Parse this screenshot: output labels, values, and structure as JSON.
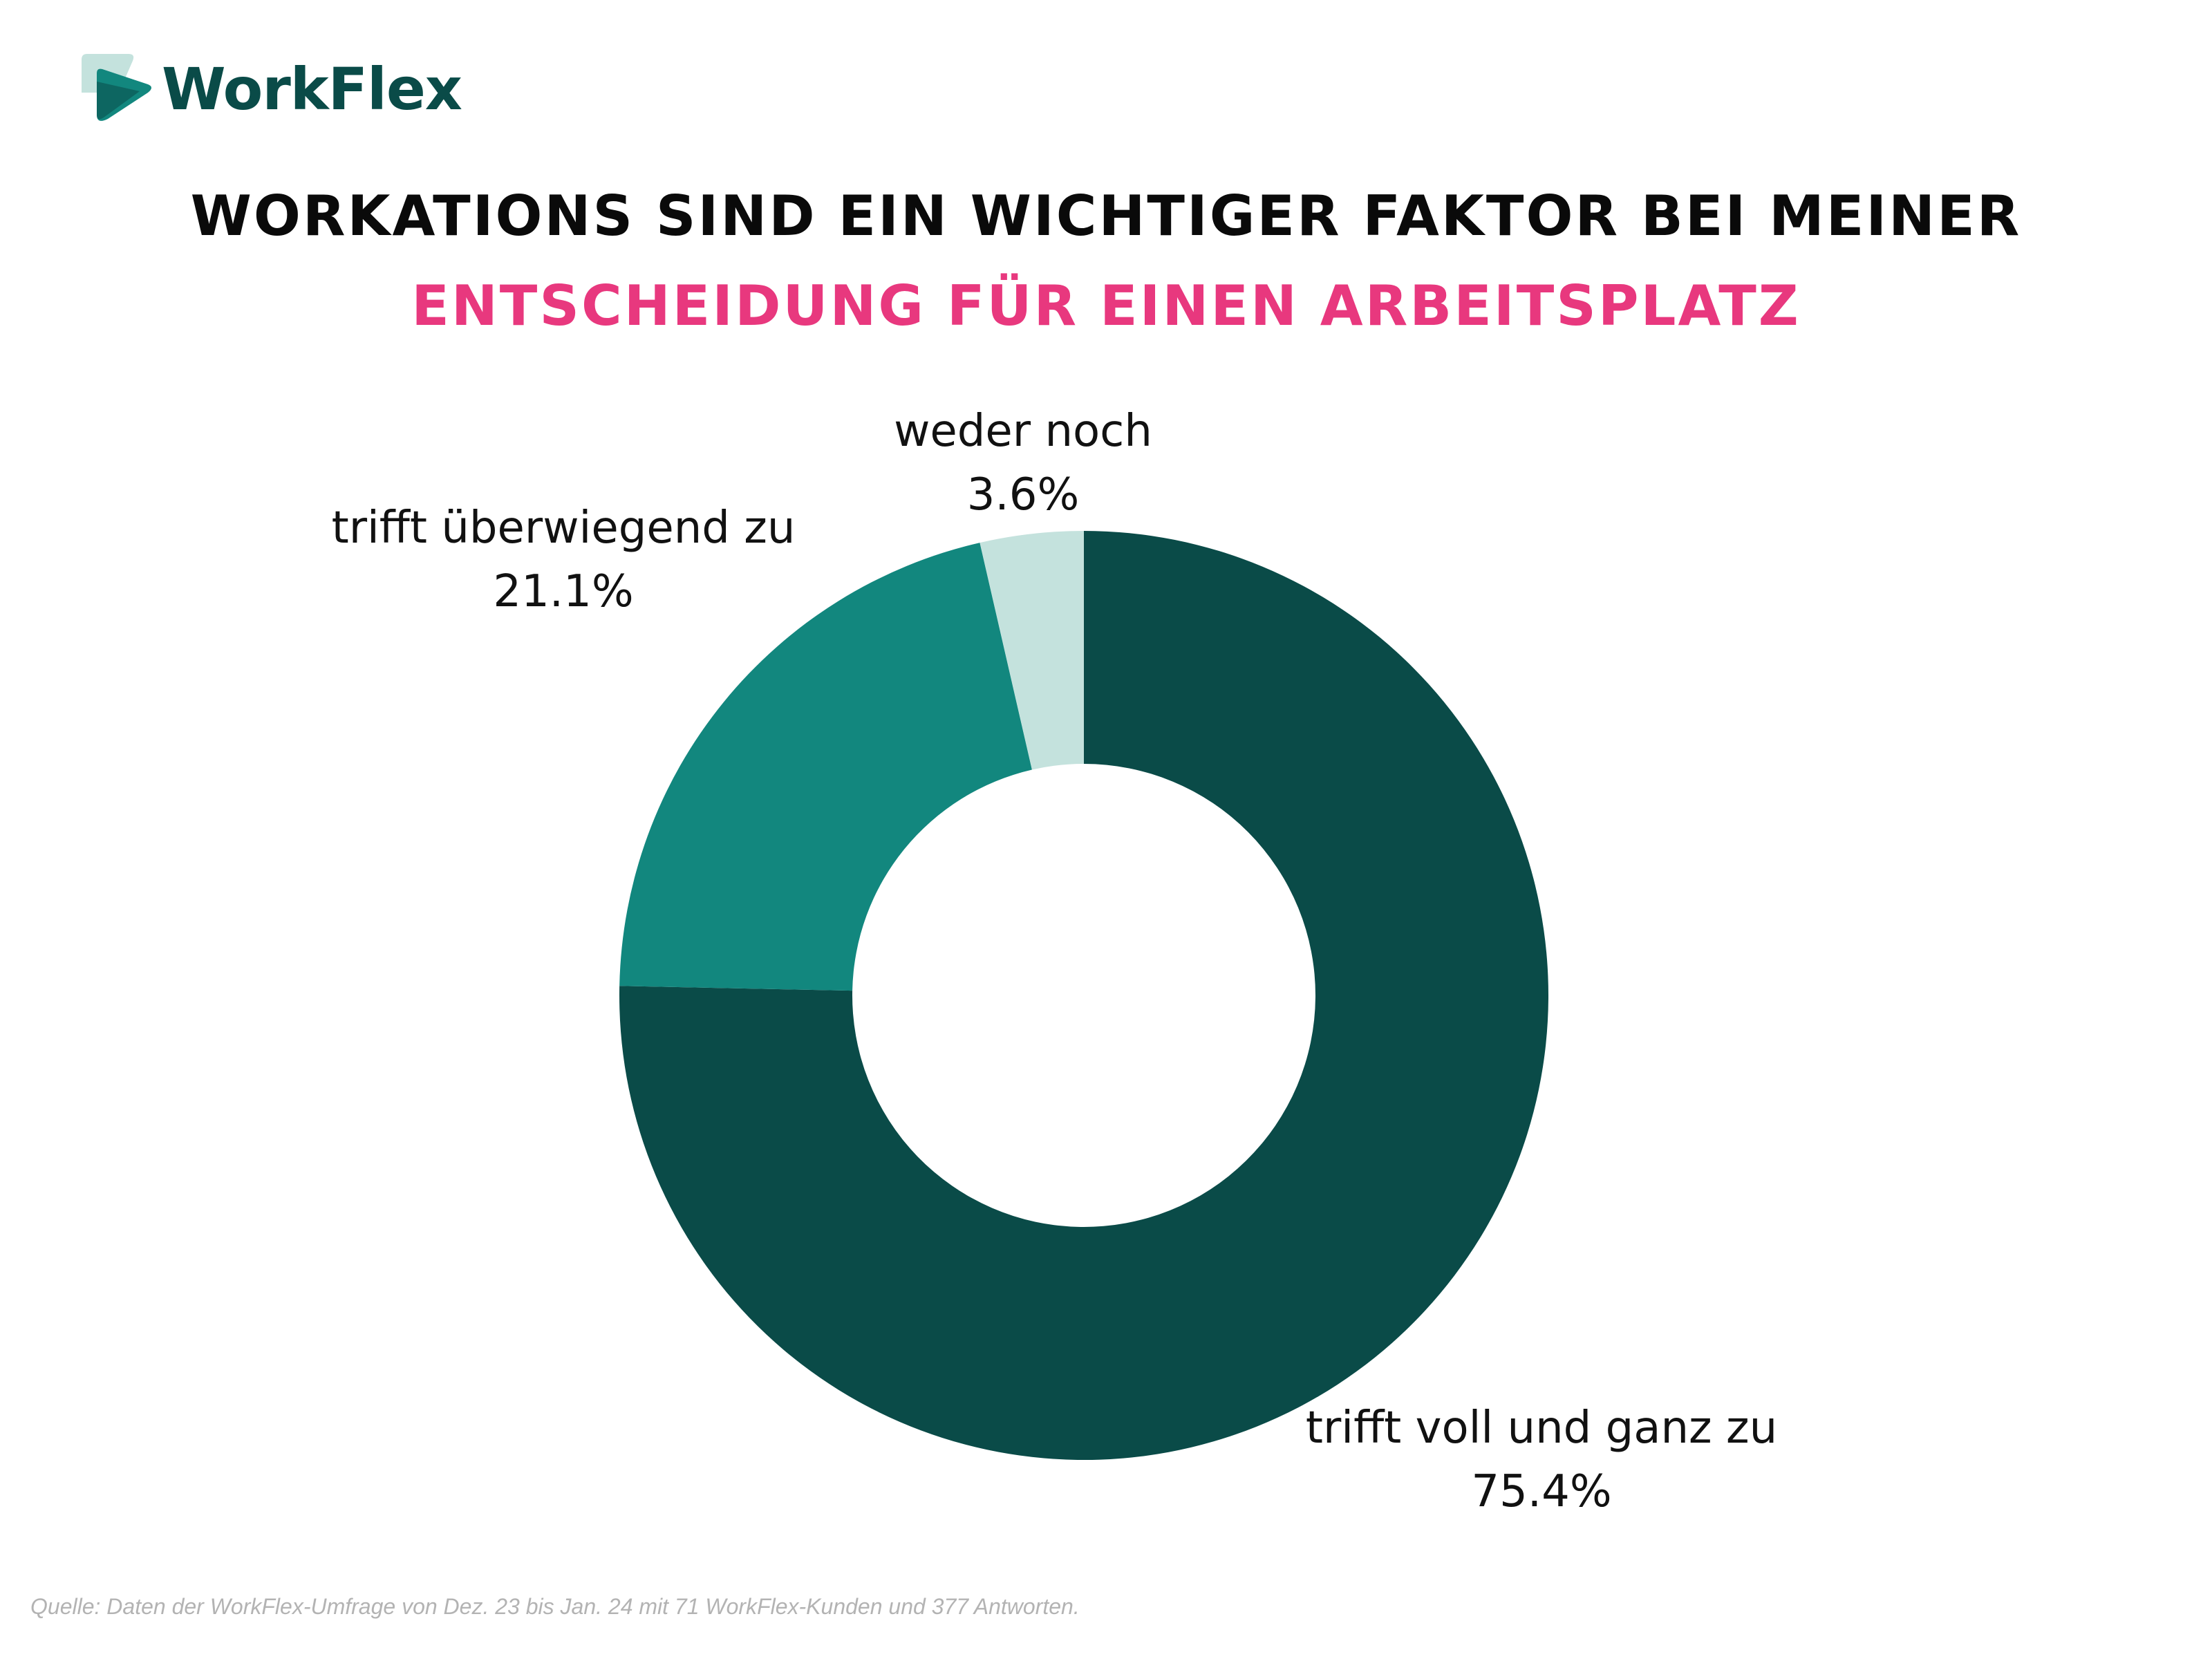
{
  "logo": {
    "name": "WorkFlex",
    "icon": "workflex-logo-icon",
    "color": "#0a4b48",
    "accent": "#c4e2dd"
  },
  "title": {
    "line1": "WORKATIONS SIND EIN WICHTIGER FAKTOR BEI MEINER",
    "line2": "ENTSCHEIDUNG FÜR EINEN ARBEITSPLATZ",
    "line1_color": "#0a0a0a",
    "line2_color": "#e8387e"
  },
  "chart_data": {
    "type": "pie",
    "style": "donut",
    "slices": [
      {
        "label": "trifft voll und ganz zu",
        "value": 75.4,
        "value_label": "75.4%",
        "color": "#0a4b48"
      },
      {
        "label": "trifft überwiegend zu",
        "value": 21.1,
        "value_label": "21.1%",
        "color": "#12877e"
      },
      {
        "label": "weder noch",
        "value": 3.6,
        "value_label": "3.6%",
        "color": "#c4e2dd"
      }
    ],
    "start": "12 o'clock",
    "direction": "clockwise"
  },
  "source": "Quelle: Daten der WorkFlex-Umfrage von Dez. 23 bis Jan. 24 mit 71 WorkFlex-Kunden und 377 Antworten."
}
